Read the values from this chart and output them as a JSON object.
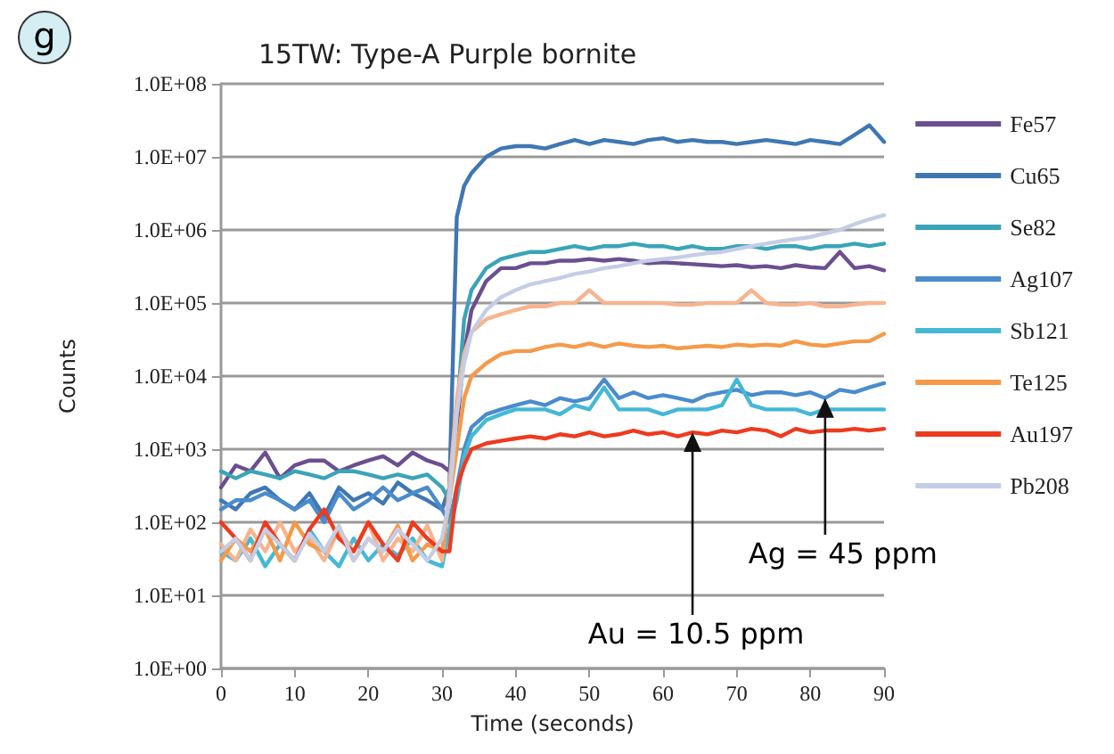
{
  "chart_data": {
    "type": "line",
    "title": "15TW: Type-A Purple bornite",
    "xlabel": "Time (seconds)",
    "ylabel": "Counts",
    "annotations": [
      "g",
      {
        "text": "Au = 10.5 ppm",
        "x": 64,
        "y": 1700
      },
      {
        "text": "Ag = 45 ppm",
        "x": 82,
        "y": 5000
      }
    ],
    "x": [
      0,
      2,
      4,
      6,
      8,
      10,
      12,
      14,
      16,
      18,
      20,
      22,
      24,
      26,
      28,
      30,
      31,
      32,
      33,
      34,
      36,
      38,
      40,
      42,
      44,
      46,
      48,
      50,
      52,
      54,
      56,
      58,
      60,
      62,
      64,
      66,
      68,
      70,
      72,
      74,
      76,
      78,
      80,
      82,
      84,
      86,
      88,
      90
    ],
    "series": [
      {
        "name": "Fe57",
        "color": "#6b4f8f",
        "values": [
          300,
          600,
          500,
          900,
          400,
          600,
          700,
          700,
          500,
          600,
          700,
          800,
          600,
          900,
          700,
          600,
          500,
          2000,
          20000,
          80000,
          200000,
          300000,
          300000,
          350000,
          350000,
          380000,
          380000,
          400000,
          380000,
          400000,
          380000,
          350000,
          360000,
          350000,
          340000,
          330000,
          320000,
          330000,
          310000,
          320000,
          300000,
          330000,
          310000,
          300000,
          500000,
          300000,
          320000,
          280000
        ]
      },
      {
        "name": "Cu65",
        "color": "#3f77b3",
        "values": [
          200,
          150,
          250,
          300,
          200,
          150,
          250,
          120,
          300,
          200,
          250,
          180,
          350,
          250,
          200,
          150,
          300,
          1500000,
          4000000,
          6000000,
          10000000,
          13000000,
          14000000,
          14000000,
          13000000,
          15000000,
          17000000,
          15000000,
          17000000,
          16000000,
          15000000,
          17000000,
          18000000,
          16000000,
          17000000,
          16000000,
          16000000,
          15000000,
          16000000,
          17000000,
          16000000,
          15000000,
          17000000,
          16000000,
          15000000,
          20000000,
          27000000,
          16000000
        ]
      },
      {
        "name": "Se82",
        "color": "#3aa4b8",
        "values": [
          500,
          400,
          500,
          450,
          400,
          500,
          450,
          400,
          500,
          500,
          450,
          400,
          450,
          400,
          450,
          300,
          200,
          3000,
          60000,
          150000,
          300000,
          400000,
          450000,
          500000,
          500000,
          550000,
          600000,
          550000,
          600000,
          600000,
          650000,
          600000,
          600000,
          550000,
          600000,
          550000,
          550000,
          600000,
          600000,
          550000,
          600000,
          600000,
          550000,
          600000,
          600000,
          650000,
          600000,
          650000
        ]
      },
      {
        "name": "Ag107",
        "color": "#4a8ccc",
        "values": [
          150,
          200,
          200,
          250,
          200,
          150,
          200,
          100,
          250,
          150,
          200,
          300,
          200,
          250,
          300,
          150,
          100,
          300,
          1000,
          2000,
          3000,
          3500,
          4000,
          4500,
          4000,
          5000,
          4500,
          5000,
          9000,
          5000,
          6000,
          5000,
          5500,
          5000,
          4500,
          5500,
          6000,
          6500,
          5500,
          6000,
          6000,
          5500,
          6000,
          5000,
          6500,
          6000,
          7000,
          8000
        ]
      },
      {
        "name": "Sb121",
        "color": "#45b8d6",
        "values": [
          40,
          30,
          60,
          25,
          50,
          30,
          80,
          40,
          25,
          60,
          30,
          50,
          35,
          60,
          30,
          25,
          80,
          200,
          800,
          1500,
          2500,
          3000,
          3500,
          3500,
          3500,
          3000,
          4000,
          3500,
          7000,
          3500,
          3500,
          3500,
          3000,
          3500,
          3500,
          3500,
          4000,
          9000,
          4000,
          3500,
          3500,
          3500,
          3000,
          3500,
          3500,
          3500,
          3500,
          3500
        ]
      },
      {
        "color": "#f8b48f",
        "values": [
          50,
          30,
          80,
          40,
          100,
          40,
          60,
          30,
          80,
          40,
          100,
          30,
          60,
          40,
          90,
          30,
          300,
          5000,
          20000,
          40000,
          60000,
          70000,
          80000,
          90000,
          90000,
          100000,
          100000,
          150000,
          100000,
          100000,
          100000,
          100000,
          100000,
          95000,
          95000,
          100000,
          100000,
          100000,
          150000,
          100000,
          95000,
          95000,
          100000,
          90000,
          90000,
          95000,
          100000,
          100000
        ]
      },
      {
        "name": "Te125",
        "color": "#f59a4a",
        "values": [
          30,
          60,
          40,
          80,
          30,
          100,
          50,
          40,
          80,
          30,
          60,
          40,
          90,
          30,
          50,
          40,
          200,
          1000,
          5000,
          10000,
          15000,
          20000,
          22000,
          22000,
          25000,
          27000,
          25000,
          28000,
          25000,
          28000,
          26000,
          25000,
          26000,
          24000,
          25000,
          26000,
          25000,
          27000,
          26000,
          27000,
          26000,
          30000,
          27000,
          26000,
          28000,
          30000,
          30000,
          38000
        ]
      },
      {
        "name": "Au197",
        "color": "#ee3a1e",
        "values": [
          100,
          60,
          30,
          100,
          50,
          30,
          80,
          150,
          60,
          40,
          100,
          50,
          30,
          100,
          60,
          40,
          40,
          300,
          600,
          1000,
          1200,
          1300,
          1400,
          1500,
          1400,
          1600,
          1500,
          1700,
          1500,
          1600,
          1800,
          1600,
          1700,
          1500,
          1700,
          1600,
          1800,
          1700,
          1900,
          1800,
          1500,
          1900,
          1700,
          1800,
          1800,
          1900,
          1800,
          1900
        ]
      },
      {
        "name": "Pb208",
        "color": "#c5cde6",
        "values": [
          40,
          60,
          30,
          80,
          50,
          30,
          70,
          40,
          90,
          30,
          60,
          40,
          80,
          50,
          30,
          60,
          200,
          3000,
          15000,
          40000,
          80000,
          120000,
          150000,
          180000,
          200000,
          220000,
          250000,
          270000,
          300000,
          320000,
          350000,
          380000,
          400000,
          420000,
          450000,
          480000,
          500000,
          550000,
          600000,
          650000,
          700000,
          750000,
          800000,
          900000,
          1000000,
          1200000,
          1400000,
          1600000
        ]
      }
    ],
    "xlim": [
      0,
      90
    ],
    "xticks": [
      0,
      10,
      20,
      30,
      40,
      50,
      60,
      70,
      80,
      90
    ],
    "ylim": [
      1,
      100000000
    ],
    "log": "y",
    "yticks": [
      {
        "value": 1,
        "label": "1.0E+00"
      },
      {
        "value": 10,
        "label": "1.0E+01"
      },
      {
        "value": 100,
        "label": "1.0E+02"
      },
      {
        "value": 1000,
        "label": "1.0E+03"
      },
      {
        "value": 10000,
        "label": "1.0E+04"
      },
      {
        "value": 100000,
        "label": "1.0E+05"
      },
      {
        "value": 1000000,
        "label": "1.0E+06"
      },
      {
        "value": 10000000,
        "label": "1.0E+07"
      },
      {
        "value": 100000000,
        "label": "1.0E+08"
      }
    ],
    "grid": "y",
    "legend": "right",
    "marker": "none",
    "line_style": "solid"
  }
}
